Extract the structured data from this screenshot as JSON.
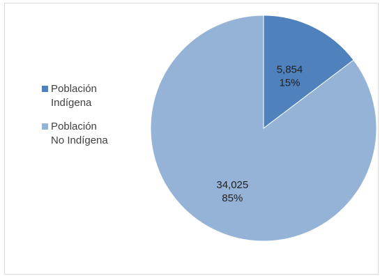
{
  "chart_data": {
    "type": "pie",
    "title": "",
    "categories": [
      "Población\nIndígena",
      "Población\nNo Indígena"
    ],
    "values": [
      5854,
      34025
    ],
    "value_labels": [
      "5,854",
      "34,025"
    ],
    "percent_labels": [
      "15%",
      "85%"
    ],
    "colors": [
      "#4f81bd",
      "#95b3d7"
    ],
    "legend_position": "left"
  }
}
